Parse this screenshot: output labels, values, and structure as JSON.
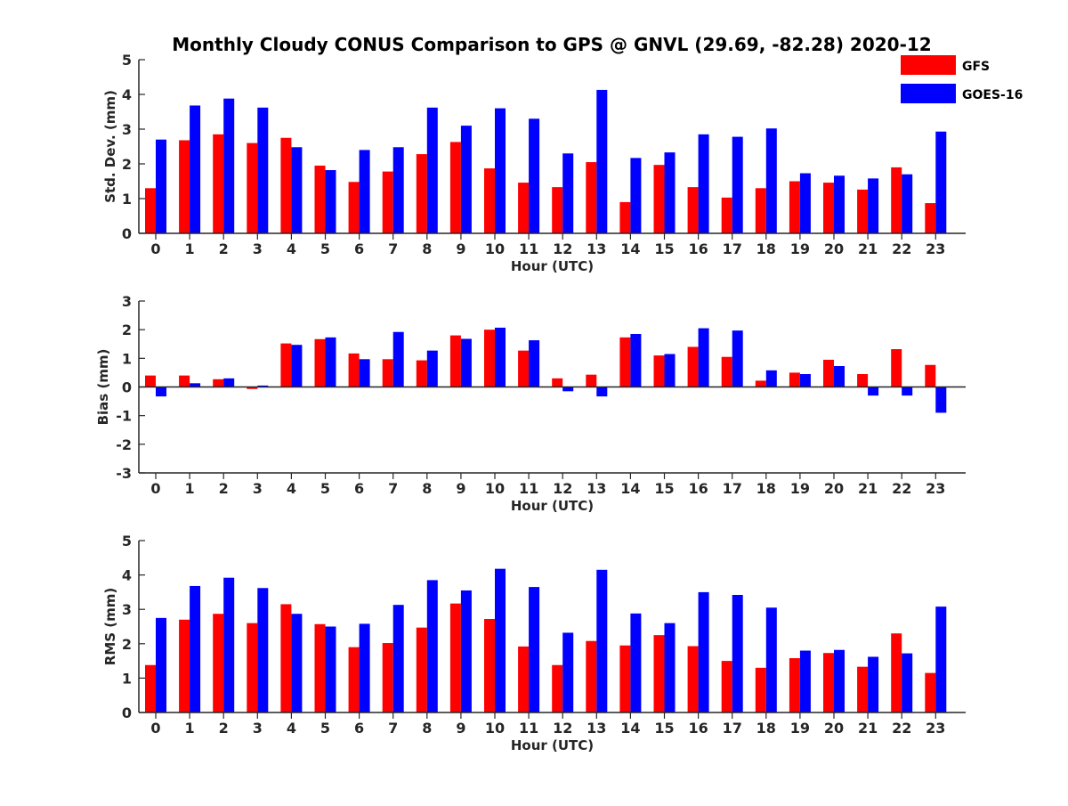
{
  "figure": {
    "title": "Monthly Cloudy CONUS Comparison to GPS @ GNVL (29.69, -82.28) 2020-12"
  },
  "legend": {
    "placement": "top-right",
    "items": [
      {
        "label": "GFS",
        "color": "#ff0000"
      },
      {
        "label": "GOES-16",
        "color": "#0000ff"
      }
    ]
  },
  "chart_data": [
    {
      "type": "bar",
      "xlabel": "Hour (UTC)",
      "ylabel": "Std. Dev. (mm)",
      "ylim": [
        0,
        5
      ],
      "yticks": [
        0,
        1,
        2,
        3,
        4,
        5
      ],
      "categories": [
        "0",
        "1",
        "2",
        "3",
        "4",
        "5",
        "6",
        "7",
        "8",
        "9",
        "10",
        "11",
        "12",
        "13",
        "14",
        "15",
        "16",
        "17",
        "18",
        "19",
        "20",
        "21",
        "22",
        "23"
      ],
      "series": [
        {
          "name": "GFS",
          "color": "#ff0000",
          "values": [
            1.3,
            2.68,
            2.85,
            2.6,
            2.75,
            1.95,
            1.48,
            1.78,
            2.28,
            2.63,
            1.87,
            1.46,
            1.33,
            2.05,
            0.9,
            1.97,
            1.33,
            1.03,
            1.3,
            1.5,
            1.46,
            1.26,
            1.9,
            0.87
          ]
        },
        {
          "name": "GOES-16",
          "color": "#0000ff",
          "values": [
            2.7,
            3.68,
            3.88,
            3.62,
            2.48,
            1.82,
            2.4,
            2.48,
            3.62,
            3.1,
            3.6,
            3.3,
            2.3,
            4.13,
            2.17,
            2.33,
            2.85,
            2.78,
            3.02,
            1.73,
            1.66,
            1.58,
            1.7,
            2.93
          ]
        }
      ]
    },
    {
      "type": "bar",
      "xlabel": "Hour (UTC)",
      "ylabel": "Bias (mm)",
      "ylim": [
        -3,
        3
      ],
      "yticks": [
        -3,
        -2,
        -1,
        0,
        1,
        2,
        3
      ],
      "categories": [
        "0",
        "1",
        "2",
        "3",
        "4",
        "5",
        "6",
        "7",
        "8",
        "9",
        "10",
        "11",
        "12",
        "13",
        "14",
        "15",
        "16",
        "17",
        "18",
        "19",
        "20",
        "21",
        "22",
        "23"
      ],
      "series": [
        {
          "name": "GFS",
          "color": "#ff0000",
          "values": [
            0.4,
            0.4,
            0.27,
            -0.07,
            1.52,
            1.67,
            1.17,
            0.97,
            0.93,
            1.8,
            2.0,
            1.27,
            0.3,
            0.43,
            1.73,
            1.1,
            1.4,
            1.05,
            0.22,
            0.5,
            0.95,
            0.45,
            1.32,
            0.77
          ]
        },
        {
          "name": "GOES-16",
          "color": "#0000ff",
          "values": [
            -0.33,
            0.13,
            0.3,
            0.05,
            1.47,
            1.73,
            0.97,
            1.92,
            1.27,
            1.68,
            2.07,
            1.63,
            -0.15,
            -0.33,
            1.85,
            1.15,
            2.05,
            1.97,
            0.58,
            0.45,
            0.73,
            -0.3,
            -0.3,
            -0.9
          ]
        }
      ]
    },
    {
      "type": "bar",
      "xlabel": "Hour (UTC)",
      "ylabel": "RMS (mm)",
      "ylim": [
        0,
        5
      ],
      "yticks": [
        0,
        1,
        2,
        3,
        4,
        5
      ],
      "categories": [
        "0",
        "1",
        "2",
        "3",
        "4",
        "5",
        "6",
        "7",
        "8",
        "9",
        "10",
        "11",
        "12",
        "13",
        "14",
        "15",
        "16",
        "17",
        "18",
        "19",
        "20",
        "21",
        "22",
        "23"
      ],
      "series": [
        {
          "name": "GFS",
          "color": "#ff0000",
          "values": [
            1.38,
            2.7,
            2.87,
            2.6,
            3.15,
            2.57,
            1.9,
            2.02,
            2.47,
            3.17,
            2.72,
            1.92,
            1.38,
            2.08,
            1.95,
            2.25,
            1.93,
            1.5,
            1.3,
            1.58,
            1.73,
            1.33,
            2.3,
            1.15
          ]
        },
        {
          "name": "GOES-16",
          "color": "#0000ff",
          "values": [
            2.75,
            3.68,
            3.92,
            3.62,
            2.87,
            2.5,
            2.58,
            3.13,
            3.85,
            3.55,
            4.18,
            3.65,
            2.32,
            4.15,
            2.88,
            2.6,
            3.5,
            3.42,
            3.05,
            1.8,
            1.82,
            1.62,
            1.72,
            3.08
          ]
        }
      ]
    }
  ]
}
